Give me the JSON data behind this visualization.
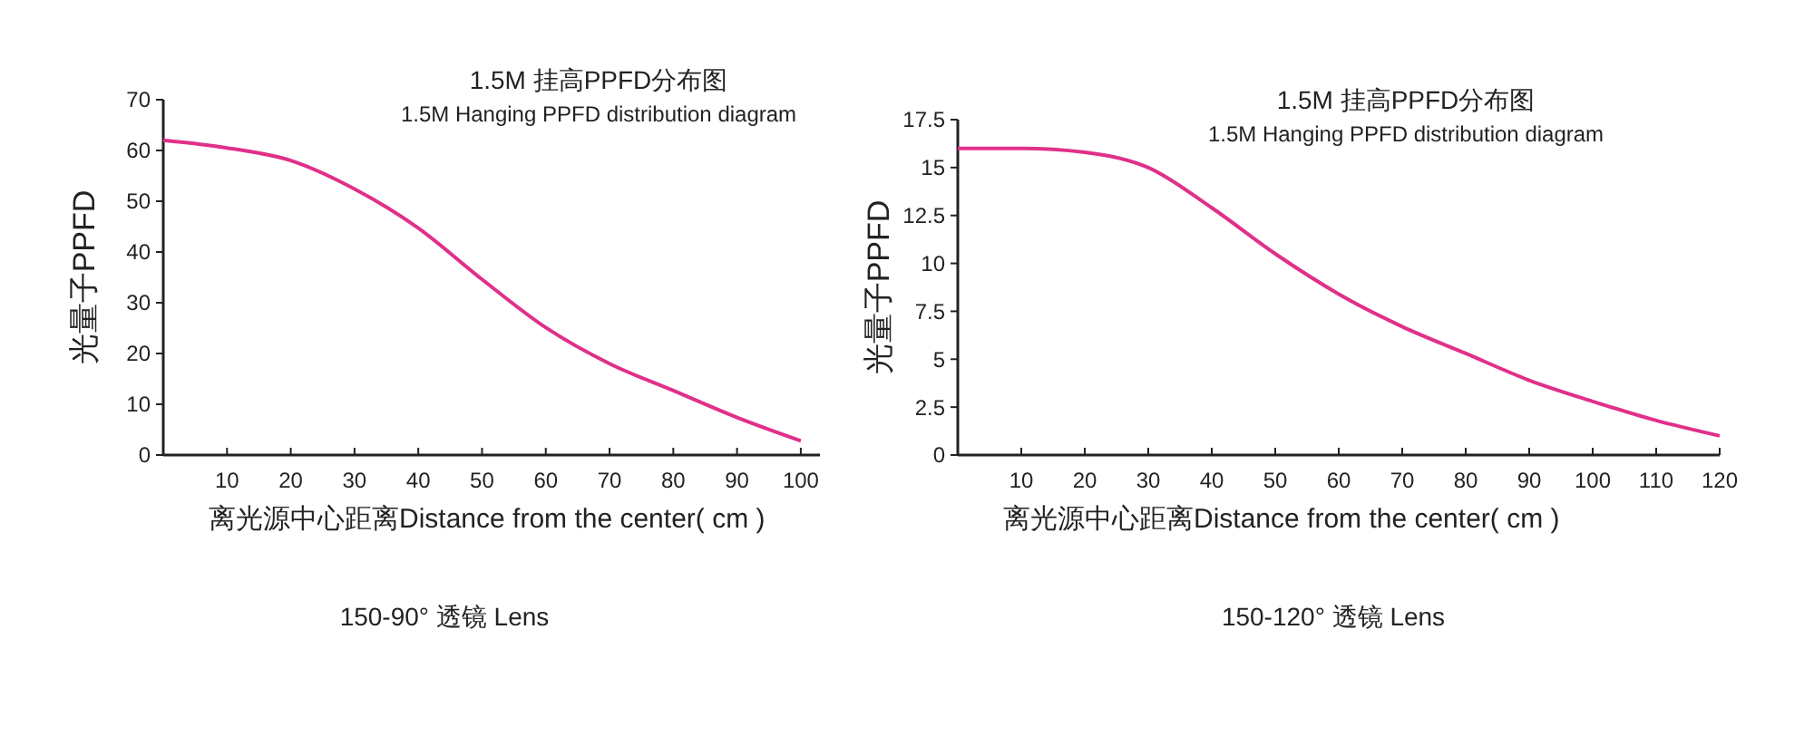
{
  "chart_data": [
    {
      "type": "line",
      "title": "1.5M 挂高PPFD分布图",
      "subtitle": "1.5M Hanging PPFD distribution diagram",
      "xlabel": "离光源中心距离Distance from the center( cm )",
      "ylabel": "光量子PPFD",
      "annotations": [
        "150-90° 透镜 Lens"
      ],
      "x": [
        0,
        10,
        20,
        30,
        40,
        50,
        60,
        70,
        80,
        90,
        100
      ],
      "series": [
        {
          "color": "#e0308a",
          "values": [
            62,
            60.5,
            58,
            52.4,
            44.7,
            34.6,
            25.1,
            18,
            12.7,
            7.4,
            2.8
          ]
        }
      ],
      "xlim": [
        0,
        103
      ],
      "xticks": [
        10,
        20,
        30,
        40,
        50,
        60,
        70,
        80,
        90,
        100
      ],
      "ylim": [
        0,
        70
      ],
      "yticks": [
        0,
        10,
        20,
        30,
        40,
        50,
        60,
        70
      ],
      "grid": false,
      "marker": "none",
      "line_style": "solid"
    },
    {
      "type": "line",
      "title": "1.5M 挂高PPFD分布图",
      "subtitle": "1.5M Hanging PPFD distribution diagram",
      "xlabel": "离光源中心距离Distance from the center( cm )",
      "ylabel": "光量子PPFD",
      "annotations": [
        "150-120° 透镜 Lens"
      ],
      "x": [
        0,
        10,
        20,
        30,
        40,
        50,
        60,
        70,
        80,
        90,
        100,
        110,
        120
      ],
      "series": [
        {
          "color": "#e0308a",
          "values": [
            16,
            16,
            15.8,
            15,
            12.9,
            10.5,
            8.4,
            6.7,
            5.3,
            3.9,
            2.8,
            1.8,
            1
          ]
        }
      ],
      "xlim": [
        0,
        120
      ],
      "xticks": [
        10,
        20,
        30,
        40,
        50,
        60,
        70,
        80,
        90,
        100,
        110,
        120
      ],
      "ylim": [
        0,
        17.5
      ],
      "yticks": [
        0,
        2.5,
        5,
        7.5,
        10,
        12.5,
        15,
        17.5
      ],
      "grid": false,
      "marker": "none",
      "line_style": "solid"
    }
  ]
}
